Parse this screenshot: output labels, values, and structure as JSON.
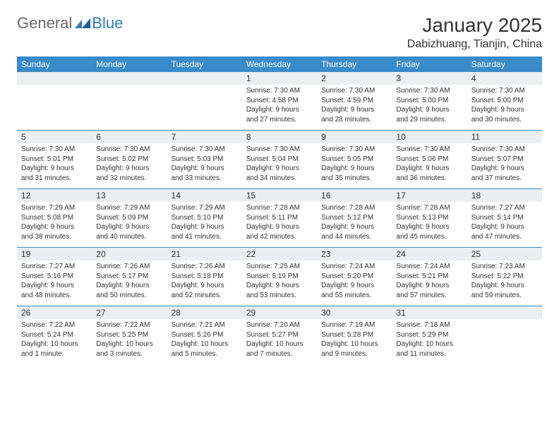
{
  "brand": {
    "general": "General",
    "blue": "Blue"
  },
  "title": "January 2025",
  "location": "Dabizhuang, Tianjin, China",
  "colors": {
    "header_bg": "#3a8bc9",
    "header_text": "#ffffff",
    "daynum_bg": "#eceeef",
    "text": "#333333",
    "rule": "#3a8bc9",
    "logo_gray": "#6a6a6a",
    "logo_blue": "#2f7bbf"
  },
  "weekdays": [
    "Sunday",
    "Monday",
    "Tuesday",
    "Wednesday",
    "Thursday",
    "Friday",
    "Saturday"
  ],
  "weeks": [
    [
      {
        "day": "",
        "lines": []
      },
      {
        "day": "",
        "lines": []
      },
      {
        "day": "",
        "lines": []
      },
      {
        "day": "1",
        "lines": [
          "Sunrise: 7:30 AM",
          "Sunset: 4:58 PM",
          "Daylight: 9 hours",
          "and 27 minutes."
        ]
      },
      {
        "day": "2",
        "lines": [
          "Sunrise: 7:30 AM",
          "Sunset: 4:59 PM",
          "Daylight: 9 hours",
          "and 28 minutes."
        ]
      },
      {
        "day": "3",
        "lines": [
          "Sunrise: 7:30 AM",
          "Sunset: 5:00 PM",
          "Daylight: 9 hours",
          "and 29 minutes."
        ]
      },
      {
        "day": "4",
        "lines": [
          "Sunrise: 7:30 AM",
          "Sunset: 5:00 PM",
          "Daylight: 9 hours",
          "and 30 minutes."
        ]
      }
    ],
    [
      {
        "day": "5",
        "lines": [
          "Sunrise: 7:30 AM",
          "Sunset: 5:01 PM",
          "Daylight: 9 hours",
          "and 31 minutes."
        ]
      },
      {
        "day": "6",
        "lines": [
          "Sunrise: 7:30 AM",
          "Sunset: 5:02 PM",
          "Daylight: 9 hours",
          "and 32 minutes."
        ]
      },
      {
        "day": "7",
        "lines": [
          "Sunrise: 7:30 AM",
          "Sunset: 5:03 PM",
          "Daylight: 9 hours",
          "and 33 minutes."
        ]
      },
      {
        "day": "8",
        "lines": [
          "Sunrise: 7:30 AM",
          "Sunset: 5:04 PM",
          "Daylight: 9 hours",
          "and 34 minutes."
        ]
      },
      {
        "day": "9",
        "lines": [
          "Sunrise: 7:30 AM",
          "Sunset: 5:05 PM",
          "Daylight: 9 hours",
          "and 35 minutes."
        ]
      },
      {
        "day": "10",
        "lines": [
          "Sunrise: 7:30 AM",
          "Sunset: 5:06 PM",
          "Daylight: 9 hours",
          "and 36 minutes."
        ]
      },
      {
        "day": "11",
        "lines": [
          "Sunrise: 7:30 AM",
          "Sunset: 5:07 PM",
          "Daylight: 9 hours",
          "and 37 minutes."
        ]
      }
    ],
    [
      {
        "day": "12",
        "lines": [
          "Sunrise: 7:29 AM",
          "Sunset: 5:08 PM",
          "Daylight: 9 hours",
          "and 38 minutes."
        ]
      },
      {
        "day": "13",
        "lines": [
          "Sunrise: 7:29 AM",
          "Sunset: 5:09 PM",
          "Daylight: 9 hours",
          "and 40 minutes."
        ]
      },
      {
        "day": "14",
        "lines": [
          "Sunrise: 7:29 AM",
          "Sunset: 5:10 PM",
          "Daylight: 9 hours",
          "and 41 minutes."
        ]
      },
      {
        "day": "15",
        "lines": [
          "Sunrise: 7:28 AM",
          "Sunset: 5:11 PM",
          "Daylight: 9 hours",
          "and 42 minutes."
        ]
      },
      {
        "day": "16",
        "lines": [
          "Sunrise: 7:28 AM",
          "Sunset: 5:12 PM",
          "Daylight: 9 hours",
          "and 44 minutes."
        ]
      },
      {
        "day": "17",
        "lines": [
          "Sunrise: 7:28 AM",
          "Sunset: 5:13 PM",
          "Daylight: 9 hours",
          "and 45 minutes."
        ]
      },
      {
        "day": "18",
        "lines": [
          "Sunrise: 7:27 AM",
          "Sunset: 5:14 PM",
          "Daylight: 9 hours",
          "and 47 minutes."
        ]
      }
    ],
    [
      {
        "day": "19",
        "lines": [
          "Sunrise: 7:27 AM",
          "Sunset: 5:16 PM",
          "Daylight: 9 hours",
          "and 48 minutes."
        ]
      },
      {
        "day": "20",
        "lines": [
          "Sunrise: 7:26 AM",
          "Sunset: 5:17 PM",
          "Daylight: 9 hours",
          "and 50 minutes."
        ]
      },
      {
        "day": "21",
        "lines": [
          "Sunrise: 7:26 AM",
          "Sunset: 5:18 PM",
          "Daylight: 9 hours",
          "and 52 minutes."
        ]
      },
      {
        "day": "22",
        "lines": [
          "Sunrise: 7:25 AM",
          "Sunset: 5:19 PM",
          "Daylight: 9 hours",
          "and 53 minutes."
        ]
      },
      {
        "day": "23",
        "lines": [
          "Sunrise: 7:24 AM",
          "Sunset: 5:20 PM",
          "Daylight: 9 hours",
          "and 55 minutes."
        ]
      },
      {
        "day": "24",
        "lines": [
          "Sunrise: 7:24 AM",
          "Sunset: 5:21 PM",
          "Daylight: 9 hours",
          "and 57 minutes."
        ]
      },
      {
        "day": "25",
        "lines": [
          "Sunrise: 7:23 AM",
          "Sunset: 5:22 PM",
          "Daylight: 9 hours",
          "and 59 minutes."
        ]
      }
    ],
    [
      {
        "day": "26",
        "lines": [
          "Sunrise: 7:22 AM",
          "Sunset: 5:24 PM",
          "Daylight: 10 hours",
          "and 1 minute."
        ]
      },
      {
        "day": "27",
        "lines": [
          "Sunrise: 7:22 AM",
          "Sunset: 5:25 PM",
          "Daylight: 10 hours",
          "and 3 minutes."
        ]
      },
      {
        "day": "28",
        "lines": [
          "Sunrise: 7:21 AM",
          "Sunset: 5:26 PM",
          "Daylight: 10 hours",
          "and 5 minutes."
        ]
      },
      {
        "day": "29",
        "lines": [
          "Sunrise: 7:20 AM",
          "Sunset: 5:27 PM",
          "Daylight: 10 hours",
          "and 7 minutes."
        ]
      },
      {
        "day": "30",
        "lines": [
          "Sunrise: 7:19 AM",
          "Sunset: 5:28 PM",
          "Daylight: 10 hours",
          "and 9 minutes."
        ]
      },
      {
        "day": "31",
        "lines": [
          "Sunrise: 7:18 AM",
          "Sunset: 5:29 PM",
          "Daylight: 10 hours",
          "and 11 minutes."
        ]
      },
      {
        "day": "",
        "lines": []
      }
    ]
  ]
}
